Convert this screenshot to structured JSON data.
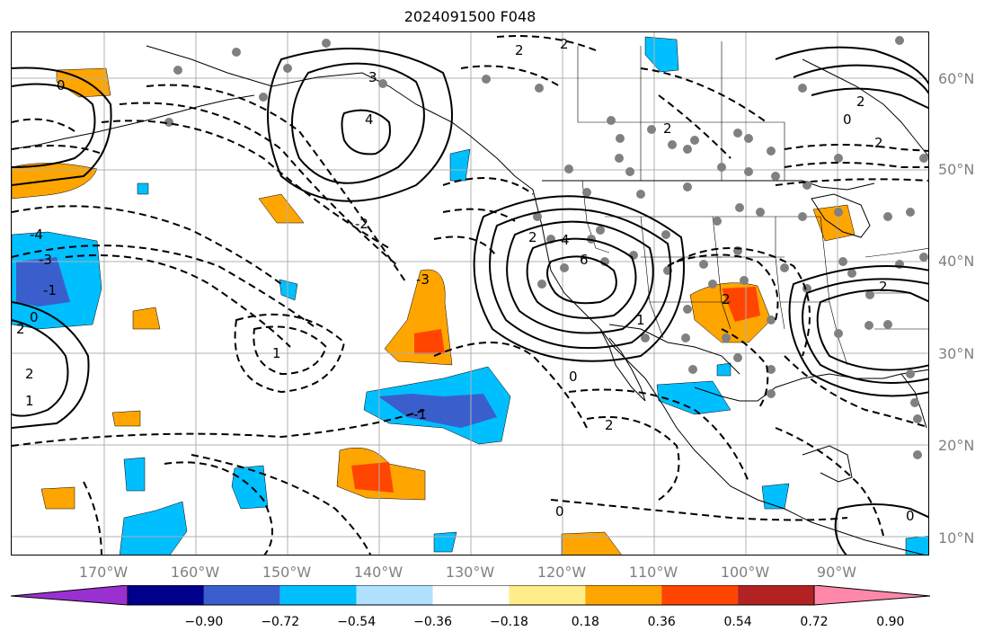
{
  "title": "2024091500 F048",
  "lat_labels": [
    "60°N",
    "50°N",
    "40°N",
    "30°N",
    "20°N",
    "10°N"
  ],
  "lon_labels": [
    "170°W",
    "160°W",
    "150°W",
    "140°W",
    "130°W",
    "120°W",
    "110°W",
    "100°W",
    "90°W"
  ],
  "contour_labels": [
    "-4",
    "-3",
    "-2",
    "-1",
    "0",
    "1",
    "2",
    "3",
    "4",
    "6"
  ],
  "colorbar": {
    "ticks": [
      "−0.90",
      "−0.72",
      "−0.54",
      "−0.36",
      "−0.18",
      "0.18",
      "0.36",
      "0.54",
      "0.72",
      "0.90"
    ],
    "colors": [
      "#9b30d0",
      "#00008b",
      "#3a5fcd",
      "#00bfff",
      "#b0e2ff",
      "#ffffff",
      "#ffec8b",
      "#ffa500",
      "#ff4500",
      "#b22222",
      "#ff88aa"
    ]
  },
  "colors": {
    "positive_shading": "#ffa500",
    "negative_shading": "#00bfff",
    "contour": "#000000",
    "stations": "#808080"
  }
}
